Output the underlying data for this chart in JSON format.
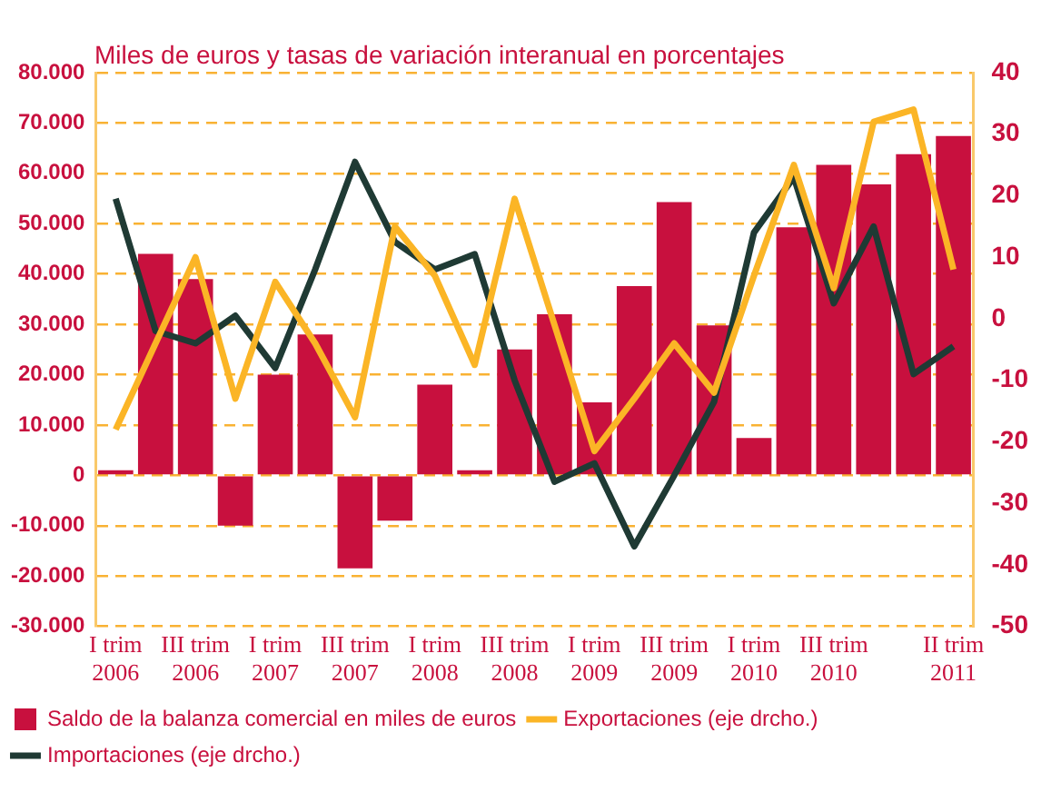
{
  "chart_data": {
    "type": "bar",
    "title": "Miles de euros y tasas de variación interanual en porcentajes",
    "categories": [
      "I trim 2006",
      null,
      "III trim 2006",
      null,
      "I trim 2007",
      null,
      "III trim 2007",
      null,
      "I trim 2008",
      null,
      "III trim 2008",
      null,
      "I trim 2009",
      null,
      "III trim 2009",
      null,
      "I trim 2010",
      null,
      "III trim 2010",
      null,
      null,
      "II trim 2011"
    ],
    "series": [
      {
        "name": "Saldo de la balanza comercial en miles de euros",
        "color": "#c8103e",
        "values": [
          1000,
          44000,
          39000,
          -10000,
          20000,
          28000,
          -18500,
          -9000,
          18000,
          1000,
          25000,
          32000,
          14500,
          37600,
          54300,
          29800,
          7400,
          49300,
          61700,
          57800,
          63800,
          67400
        ]
      },
      {
        "name": "Exportaciones (eje drcho.)",
        "type": "line",
        "axis": "y2",
        "color": "#fbb526",
        "values": [
          -18,
          -4,
          10,
          -13,
          6,
          -4,
          -16,
          15,
          7,
          -7.5,
          19.5,
          -1,
          -21.5,
          -13,
          -4,
          -12,
          7,
          25,
          5,
          32,
          34,
          8
        ]
      },
      {
        "name": "Importaciones (eje drcho.)",
        "type": "line",
        "axis": "y2",
        "color": "#1f3a34",
        "values": [
          19.5,
          -2,
          -4,
          0.5,
          -8,
          8,
          25.5,
          12.5,
          8,
          10.5,
          -10,
          -26.5,
          -23.5,
          -37,
          -25.5,
          -13.5,
          14,
          23,
          2.5,
          15,
          -9,
          -4.5
        ]
      }
    ],
    "ylim": [
      -30000,
      80000
    ],
    "yticks": [
      {
        "value": -30000,
        "label": "-30.000"
      },
      {
        "value": -20000,
        "label": "-20.000"
      },
      {
        "value": -10000,
        "label": "-10.000"
      },
      0,
      {
        "value": 10000,
        "label": "10.000"
      },
      {
        "value": 20000,
        "label": "20.000"
      },
      {
        "value": 30000,
        "label": "30.000"
      },
      {
        "value": 40000,
        "label": "40.000"
      },
      {
        "value": 50000,
        "label": "50.000"
      },
      {
        "value": 60000,
        "label": "60.000"
      },
      {
        "value": 70000,
        "label": "70.000"
      },
      {
        "value": 80000,
        "label": "80.000"
      }
    ],
    "y2lim": [
      -50,
      40
    ],
    "y2ticks": [
      -50,
      -40,
      -30,
      -20,
      -10,
      0,
      10,
      20,
      30,
      40
    ],
    "grid": "y",
    "legend": "bottom",
    "marker": "none",
    "line_style": "solid"
  }
}
